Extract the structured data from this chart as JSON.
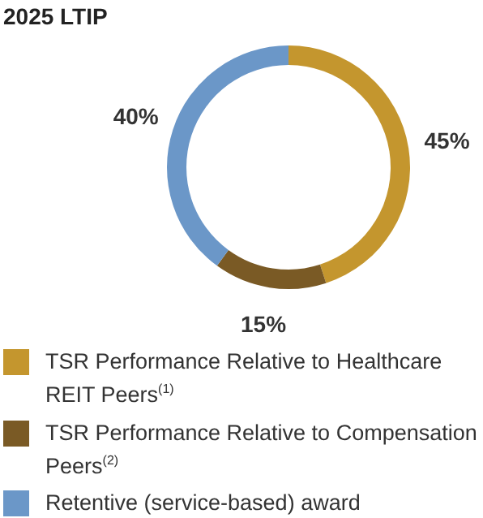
{
  "chart_data": {
    "type": "donut",
    "title": "2025 LTIP",
    "categories": [
      "TSR Performance Relative to Healthcare REIT Peers$^{(1)}$",
      "TSR Performance Relative to Compensation Peers$^{(2)}$",
      "Retentive (service-based) award"
    ],
    "values": [
      45,
      15,
      40
    ],
    "colors": [
      "#c4962e",
      "#7a5a25",
      "#6b97c8"
    ],
    "value_labels": [
      "45%",
      "15%",
      "40%"
    ],
    "legend": "bottom"
  }
}
